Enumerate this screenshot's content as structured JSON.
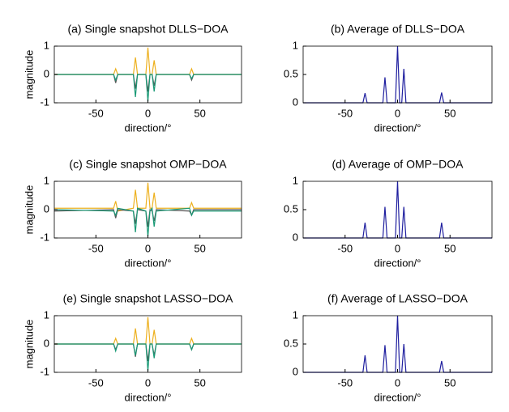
{
  "chart_data": [
    {
      "type": "line",
      "title": "(a) Single snapshot DLLS−DOA",
      "x_label": "direction/°",
      "y_label": "magnitude",
      "x": [
        -90,
        -33,
        -31,
        -29,
        -14,
        -12,
        -10,
        -2,
        0,
        2,
        4,
        6,
        8,
        40,
        42,
        44,
        90
      ],
      "series": [
        {
          "color": "#edb120",
          "values": [
            0,
            0,
            0.2,
            0,
            0,
            0.6,
            0,
            0,
            0.95,
            0,
            0,
            0.5,
            0,
            0,
            0.2,
            0,
            0
          ]
        },
        {
          "color": "#555555",
          "values": [
            0,
            0,
            -0.3,
            0,
            0,
            -0.5,
            0,
            0,
            -0.6,
            0,
            0,
            -0.4,
            0,
            0,
            -0.2,
            0,
            0
          ]
        },
        {
          "color": "#1a9a76",
          "values": [
            0,
            0,
            -0.2,
            0,
            0,
            -0.8,
            0,
            0,
            -0.95,
            0,
            0,
            -0.6,
            0,
            0,
            -0.15,
            0,
            0
          ]
        }
      ],
      "xlim": [
        -90,
        90
      ],
      "xticks": [
        -50,
        0,
        50
      ],
      "ylim": [
        -1,
        1
      ],
      "yticks": [
        -1,
        0,
        1
      ],
      "grid": false
    },
    {
      "type": "line",
      "title": "(b) Average of DLLS−DOA",
      "x_label": "direction/°",
      "x": [
        -90,
        -33,
        -31,
        -29,
        -14,
        -12,
        -10,
        -2,
        0,
        2,
        4,
        6,
        8,
        40,
        42,
        44,
        90
      ],
      "series": [
        {
          "color": "#1f1f9f",
          "values": [
            0,
            0,
            0.17,
            0,
            0,
            0.45,
            0,
            0,
            1,
            0,
            0,
            0.6,
            0,
            0,
            0.18,
            0,
            0
          ]
        }
      ],
      "xlim": [
        -90,
        90
      ],
      "xticks": [
        -50,
        0,
        50
      ],
      "ylim": [
        0,
        1
      ],
      "yticks": [
        0,
        0.5,
        1
      ],
      "grid": false
    },
    {
      "type": "line",
      "title": "(c) Single snapshot OMP−DOA",
      "x_label": "direction/°",
      "y_label": "magnitude",
      "x": [
        -90,
        -33,
        -31,
        -29,
        -14,
        -12,
        -10,
        -2,
        0,
        2,
        4,
        6,
        8,
        40,
        42,
        44,
        90
      ],
      "series": [
        {
          "color": "#edb120",
          "values": [
            0.05,
            0.05,
            0.3,
            -0.05,
            0.05,
            0.7,
            0.05,
            0.05,
            0.95,
            0.05,
            0.05,
            0.6,
            0.05,
            0.05,
            0.25,
            0.05,
            0.05
          ]
        },
        {
          "color": "#555555",
          "values": [
            -0.05,
            0,
            -0.3,
            0,
            -0.05,
            -0.5,
            0,
            -0.05,
            -0.6,
            0,
            -0.05,
            -0.4,
            0,
            -0.05,
            -0.2,
            0,
            0
          ]
        },
        {
          "color": "#1a9a76",
          "values": [
            0,
            -0.05,
            -0.2,
            0.05,
            -0.05,
            -0.8,
            0.05,
            -0.05,
            -0.95,
            -0.05,
            0.05,
            -0.6,
            -0.05,
            0.05,
            -0.2,
            -0.05,
            -0.05
          ]
        }
      ],
      "xlim": [
        -90,
        90
      ],
      "xticks": [
        -50,
        0,
        50
      ],
      "ylim": [
        -1,
        1
      ],
      "yticks": [
        -1,
        0,
        1
      ],
      "grid": false
    },
    {
      "type": "line",
      "title": "(d) Average of OMP−DOA",
      "x_label": "direction/°",
      "x": [
        -90,
        -33,
        -31,
        -29,
        -14,
        -12,
        -10,
        -2,
        0,
        2,
        4,
        6,
        8,
        40,
        42,
        44,
        90
      ],
      "series": [
        {
          "color": "#1f1f9f",
          "values": [
            0,
            0,
            0.27,
            0,
            0,
            0.55,
            0,
            0,
            1,
            0,
            0,
            0.55,
            0,
            0,
            0.27,
            0,
            0
          ]
        }
      ],
      "xlim": [
        -90,
        90
      ],
      "xticks": [
        -50,
        0,
        50
      ],
      "ylim": [
        0,
        1
      ],
      "yticks": [
        0,
        0.5,
        1
      ],
      "grid": false
    },
    {
      "type": "line",
      "title": "(e) Single snapshot LASSO−DOA",
      "x_label": "direction/°",
      "y_label": "magnitude",
      "x": [
        -90,
        -33,
        -31,
        -29,
        -14,
        -12,
        -10,
        -2,
        0,
        2,
        4,
        6,
        8,
        40,
        42,
        44,
        90
      ],
      "series": [
        {
          "color": "#edb120",
          "values": [
            0,
            0,
            0.2,
            0,
            0,
            0.55,
            0,
            0,
            0.95,
            0,
            0,
            0.5,
            0,
            0,
            0.2,
            0,
            0
          ]
        },
        {
          "color": "#555555",
          "values": [
            0,
            0,
            -0.2,
            0,
            0,
            -0.45,
            0,
            0,
            -0.6,
            0,
            0,
            -0.4,
            0,
            0,
            -0.2,
            0,
            0
          ]
        },
        {
          "color": "#1a9a76",
          "values": [
            0,
            0,
            -0.25,
            0,
            0,
            -0.4,
            0,
            0,
            -0.95,
            0,
            0,
            -0.5,
            0,
            0,
            -0.2,
            0,
            0
          ]
        }
      ],
      "xlim": [
        -90,
        90
      ],
      "xticks": [
        -50,
        0,
        50
      ],
      "ylim": [
        -1,
        1
      ],
      "yticks": [
        -1,
        0,
        1
      ],
      "grid": false
    },
    {
      "type": "line",
      "title": "(f) Average of LASSO−DOA",
      "x_label": "direction/°",
      "x": [
        -90,
        -33,
        -31,
        -29,
        -14,
        -12,
        -10,
        -2,
        0,
        2,
        4,
        6,
        8,
        40,
        42,
        44,
        90
      ],
      "series": [
        {
          "color": "#1f1f9f",
          "values": [
            0,
            0,
            0.3,
            0,
            0,
            0.48,
            0,
            0,
            1,
            0,
            0,
            0.5,
            0,
            0,
            0.2,
            0,
            0
          ]
        }
      ],
      "xlim": [
        -90,
        90
      ],
      "xticks": [
        -50,
        0,
        50
      ],
      "ylim": [
        0,
        1
      ],
      "yticks": [
        0,
        0.5,
        1
      ],
      "grid": false
    }
  ]
}
